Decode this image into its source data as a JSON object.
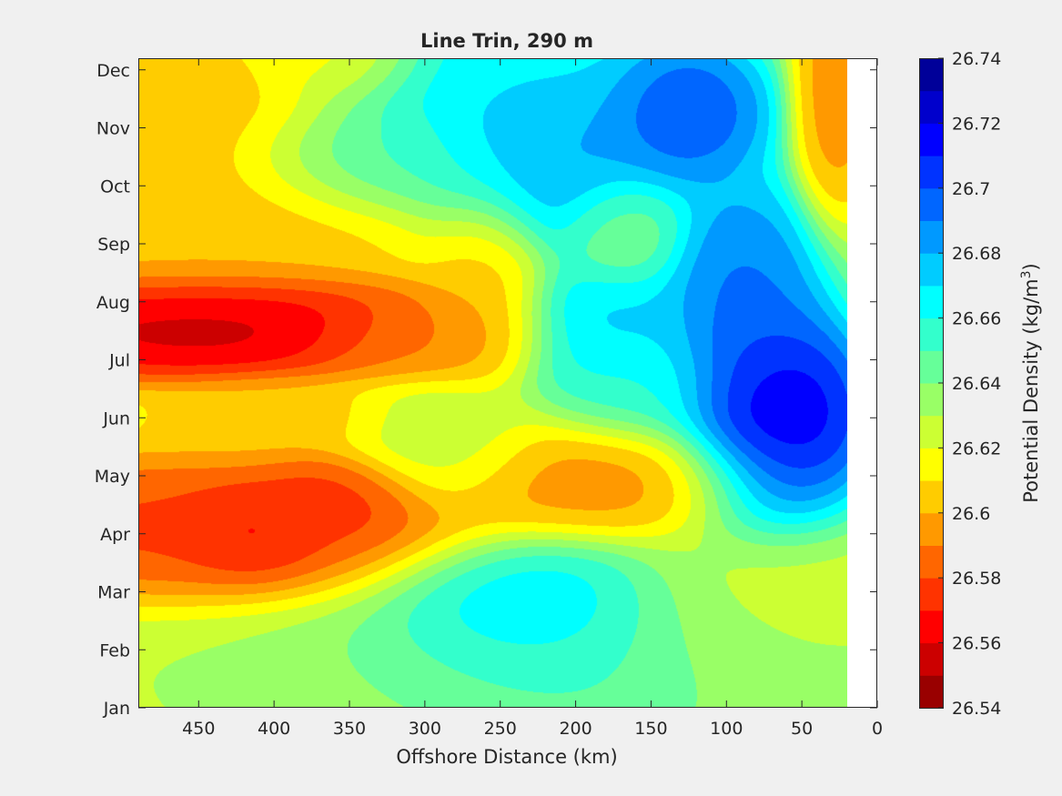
{
  "chart_data": {
    "type": "heatmap",
    "title": "Line Trin, 290 m",
    "xlabel": "Offshore Distance (km)",
    "ylabel": "",
    "xlim": [
      490,
      0
    ],
    "x_reversed": true,
    "x_ticks": [
      450,
      400,
      350,
      300,
      250,
      200,
      150,
      100,
      50,
      0
    ],
    "y_ticks": [
      "Jan",
      "Feb",
      "Mar",
      "Apr",
      "May",
      "Jun",
      "Jul",
      "Aug",
      "Sep",
      "Oct",
      "Nov",
      "Dec"
    ],
    "data_coverage_x": [
      490,
      20
    ],
    "colorbar": {
      "label": "Potential Density (kg/m",
      "label_superscript": "3",
      "label_suffix": ")",
      "min": 26.54,
      "max": 26.74,
      "step": 0.01,
      "tick_labels": [
        "26.54",
        "26.56",
        "26.58",
        "26.6",
        "26.62",
        "26.64",
        "26.66",
        "26.68",
        "26.7",
        "26.72",
        "26.74"
      ],
      "colors": [
        "#990000",
        "#cc0000",
        "#ff0000",
        "#ff3300",
        "#ff6600",
        "#ff9900",
        "#ffcc00",
        "#ffff00",
        "#ccff33",
        "#99ff66",
        "#66ff99",
        "#33ffcc",
        "#00ffff",
        "#00ccff",
        "#0099ff",
        "#0066ff",
        "#0033ff",
        "#0000ff",
        "#0000cc",
        "#000099"
      ]
    },
    "field_features": [
      {
        "month": 0.0,
        "km": 490,
        "value": 26.63,
        "spread_km": 250,
        "spread_months": 1.5
      },
      {
        "month": 0.7,
        "km": 200,
        "value": 26.66,
        "spread_km": 150,
        "spread_months": 1.2
      },
      {
        "month": 1.7,
        "km": 230,
        "value": 26.68,
        "spread_km": 70,
        "spread_months": 0.9
      },
      {
        "month": 1.2,
        "km": 80,
        "value": 26.62,
        "spread_km": 80,
        "spread_months": 1.4
      },
      {
        "month": 3.0,
        "km": 460,
        "value": 26.57,
        "spread_km": 140,
        "spread_months": 1.0
      },
      {
        "month": 3.0,
        "km": 415,
        "value": 26.56,
        "spread_km": 35,
        "spread_months": 0.6
      },
      {
        "month": 3.6,
        "km": 360,
        "value": 26.57,
        "spread_km": 40,
        "spread_months": 0.6
      },
      {
        "month": 4.0,
        "km": 180,
        "value": 26.59,
        "spread_km": 80,
        "spread_months": 0.8
      },
      {
        "month": 4.6,
        "km": 290,
        "value": 26.63,
        "spread_km": 50,
        "spread_months": 0.8
      },
      {
        "month": 5.0,
        "km": 400,
        "value": 26.6,
        "spread_km": 60,
        "spread_months": 0.5
      },
      {
        "month": 5.0,
        "km": 70,
        "value": 26.735,
        "spread_km": 50,
        "spread_months": 1.4
      },
      {
        "month": 5.5,
        "km": 160,
        "value": 26.66,
        "spread_km": 50,
        "spread_months": 0.8
      },
      {
        "month": 6.6,
        "km": 450,
        "value": 26.545,
        "spread_km": 120,
        "spread_months": 0.7
      },
      {
        "month": 6.4,
        "km": 300,
        "value": 26.59,
        "spread_km": 60,
        "spread_months": 0.6
      },
      {
        "month": 7.3,
        "km": 260,
        "value": 26.6,
        "spread_km": 30,
        "spread_months": 1.2
      },
      {
        "month": 6.6,
        "km": 180,
        "value": 26.68,
        "spread_km": 50,
        "spread_months": 0.8
      },
      {
        "month": 7.2,
        "km": 90,
        "value": 26.7,
        "spread_km": 40,
        "spread_months": 1.5
      },
      {
        "month": 8.2,
        "km": 170,
        "value": 26.64,
        "spread_km": 30,
        "spread_months": 0.7
      },
      {
        "month": 8.5,
        "km": 450,
        "value": 26.6,
        "spread_km": 120,
        "spread_months": 1.2
      },
      {
        "month": 9.4,
        "km": 330,
        "value": 26.66,
        "spread_km": 70,
        "spread_months": 0.7
      },
      {
        "month": 9.5,
        "km": 220,
        "value": 26.69,
        "spread_km": 60,
        "spread_months": 1.3
      },
      {
        "month": 10.3,
        "km": 130,
        "value": 26.71,
        "spread_km": 45,
        "spread_months": 1.0
      },
      {
        "month": 10.5,
        "km": 30,
        "value": 26.59,
        "spread_km": 20,
        "spread_months": 1.5
      },
      {
        "month": 10.2,
        "km": 480,
        "value": 26.6,
        "spread_km": 80,
        "spread_months": 1.3
      },
      {
        "month": 11.3,
        "km": 350,
        "value": 26.61,
        "spread_km": 40,
        "spread_months": 0.6
      },
      {
        "month": 11.0,
        "km": 260,
        "value": 26.67,
        "spread_km": 80,
        "spread_months": 1.0
      }
    ],
    "field_background": 26.625
  }
}
